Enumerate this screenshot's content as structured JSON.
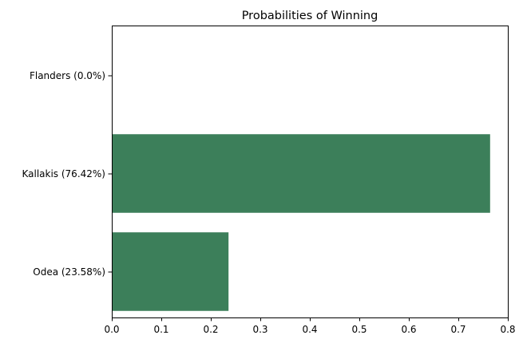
{
  "chart_data": {
    "type": "bar",
    "orientation": "horizontal",
    "title": "Probabilities of Winning",
    "xlabel": "",
    "ylabel": "",
    "categories": [
      "Flanders (0.0%)",
      "Kallakis (76.42%)",
      "Odea (23.58%)"
    ],
    "values": [
      0.0,
      0.7642,
      0.2358
    ],
    "xlim": [
      0,
      0.8
    ],
    "xticks": [
      "0.0",
      "0.1",
      "0.2",
      "0.3",
      "0.4",
      "0.5",
      "0.6",
      "0.7",
      "0.8"
    ],
    "bar_color": "#3c7f5a",
    "grid": false,
    "legend": "none"
  }
}
